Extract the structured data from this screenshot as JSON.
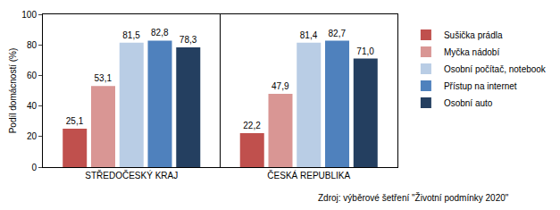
{
  "chart_data": {
    "type": "bar",
    "categories": [
      "STŘEDOČESKÝ KRAJ",
      "ČESKÁ REPUBLIKA"
    ],
    "y_label": "Podíl domácností (%)",
    "series": [
      {
        "name": "Sušička prádla",
        "color": "#c0504d",
        "values": [
          25.1,
          22.2
        ],
        "value_labels": [
          "25,1",
          "22,2"
        ]
      },
      {
        "name": "Myčka nádobí",
        "color": "#d99694",
        "values": [
          53.1,
          47.9
        ],
        "value_labels": [
          "53,1",
          "47,9"
        ]
      },
      {
        "name": "Osobní počítač, notebook",
        "color": "#b9cde5",
        "values": [
          81.5,
          81.4
        ],
        "value_labels": [
          "81,5",
          "81,4"
        ]
      },
      {
        "name": "Přístup na internet",
        "color": "#4f81bd",
        "values": [
          82.8,
          82.7
        ],
        "value_labels": [
          "82,8",
          "82,7"
        ]
      },
      {
        "name": "Osobní auto",
        "color": "#243f60",
        "values": [
          78.3,
          71.0
        ],
        "value_labels": [
          "78,3",
          "71,0"
        ]
      }
    ],
    "ylim": [
      0,
      100
    ],
    "yticks": [
      0,
      20,
      40,
      60,
      80,
      100
    ],
    "grid": false,
    "legend": "right",
    "data_labels": true,
    "annotations": [
      {
        "text": "Zdroj: výběrové šetření \"Životní podmínky 2020\""
      }
    ]
  }
}
